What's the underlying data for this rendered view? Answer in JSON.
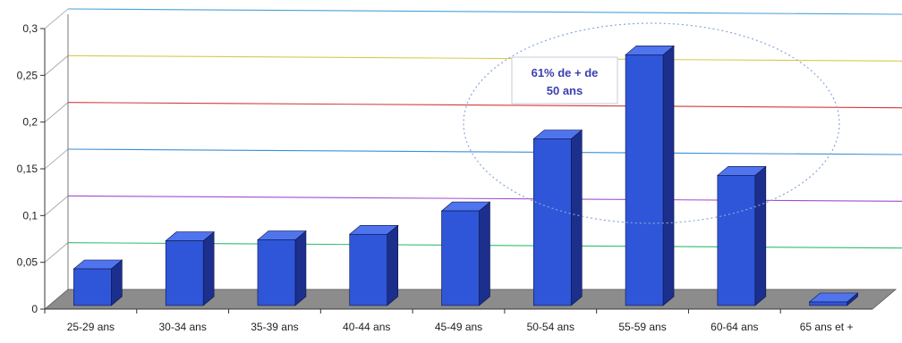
{
  "chart_data": {
    "type": "bar",
    "title": "",
    "xlabel": "",
    "ylabel": "",
    "categories": [
      "25-29 ans",
      "30-34 ans",
      "35-39 ans",
      "40-44 ans",
      "45-49 ans",
      "50-54 ans",
      "55-59 ans",
      "60-64 ans",
      "65 ans et +"
    ],
    "values": [
      0.043,
      0.073,
      0.074,
      0.08,
      0.105,
      0.182,
      0.272,
      0.143,
      0.003
    ],
    "ylim": [
      0,
      0.3
    ],
    "yticks": [
      "0",
      "0,05",
      "0,1",
      "0,15",
      "0,2",
      "0,25",
      "0,3"
    ],
    "grid": true,
    "legend": "none",
    "annotation": {
      "line1": "61% de + de",
      "line2": "50 ans"
    },
    "colors": {
      "bar_front": "#2f56d8",
      "bar_side": "#1c2f8c",
      "bar_top": "#4f74ee",
      "floor": "#8c8c8c",
      "gridlines": [
        "#c6c02a",
        "#2fbf6a",
        "#a24bd1",
        "#3a8fd8",
        "#d23a3a",
        "#d8c94a",
        "#4aa0d8"
      ],
      "annotation_text": "#3a3fb0",
      "ellipse": "#8aa6d8"
    }
  }
}
